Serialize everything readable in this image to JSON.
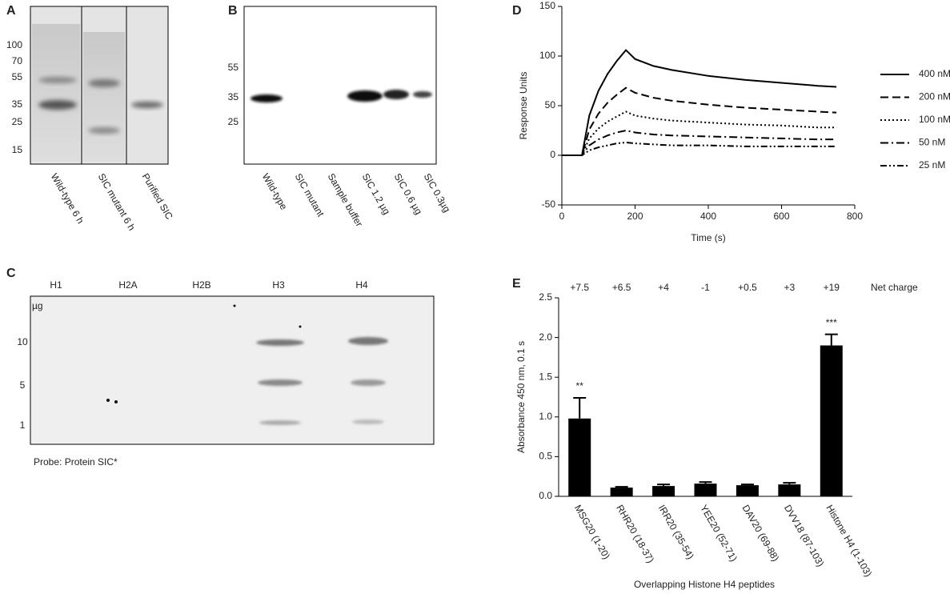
{
  "panel_labels": [
    "A",
    "B",
    "C",
    "D",
    "E"
  ],
  "gel_a": {
    "mw_labels": [
      "100",
      "70",
      "55",
      "35",
      "25",
      "15"
    ],
    "lanes": [
      "Wild-type 6 h",
      "SIC mutant 6 h",
      "Purified SIC"
    ]
  },
  "blot_b": {
    "mw_labels": [
      "55",
      "35",
      "25"
    ],
    "lanes": [
      "Wild-type",
      "SIC mutant",
      "Sample buffer",
      "SIC 1.2 µg",
      "SIC 0.6 µg",
      "SIC 0.3µg"
    ]
  },
  "blot_c": {
    "columns": [
      "H1",
      "H2A",
      "H2B",
      "H3",
      "H4"
    ],
    "unit": "µg",
    "rows": [
      "10",
      "5",
      "1"
    ],
    "caption": "Probe: Protein SIC*"
  },
  "chart_data": [
    {
      "type": "line",
      "xlabel": "Time (s)",
      "ylabel": "Response Units",
      "x": [
        0,
        55,
        75,
        100,
        125,
        150,
        175,
        200,
        250,
        300,
        400,
        500,
        600,
        700,
        750
      ],
      "series": [
        {
          "name": "400 nM",
          "color": "#000000",
          "dash": "solid",
          "values": [
            0,
            0,
            40,
            65,
            82,
            95,
            106,
            97,
            90,
            86,
            80,
            76,
            73,
            70,
            69
          ]
        },
        {
          "name": "200 nM",
          "color": "#000000",
          "dash": "dashed",
          "values": [
            0,
            0,
            26,
            42,
            53,
            61,
            68,
            63,
            58,
            55,
            51,
            48,
            46,
            44,
            43
          ]
        },
        {
          "name": "100 nM",
          "color": "#000000",
          "dash": "dotted",
          "values": [
            0,
            0,
            17,
            27,
            34,
            39,
            44,
            40,
            37,
            35,
            33,
            31,
            30,
            28,
            28
          ]
        },
        {
          "name": "50 nM",
          "color": "#000000",
          "dash": "dashdot",
          "values": [
            0,
            0,
            10,
            16,
            20,
            23,
            25,
            23,
            21,
            20,
            19,
            18,
            17,
            16,
            16
          ]
        },
        {
          "name": "25 nM",
          "color": "#000000",
          "dash": "dashdotdot",
          "values": [
            0,
            0,
            5,
            8,
            10,
            12,
            13,
            12,
            11,
            10,
            10,
            9,
            9,
            9,
            9
          ]
        }
      ],
      "xlim": [
        0,
        800
      ],
      "xticks": [
        0,
        200,
        400,
        600,
        800
      ],
      "ylim": [
        -50,
        150
      ],
      "yticks": [
        -50,
        0,
        50,
        100,
        150
      ],
      "legend": "right"
    },
    {
      "type": "bar",
      "xlabel": "Overlapping Histone H4 peptides",
      "ylabel": "Absorbance 450 nm, 0.1 s",
      "categories": [
        "MSG20 (1-20)",
        "RHR20 (18-37)",
        "IRR20 (35-54)",
        "YEE20 (52-71)",
        "DAV20 (69-88)",
        "DVV18 (87-103)",
        "Histone H4 (1-103)"
      ],
      "values": [
        0.98,
        0.11,
        0.13,
        0.16,
        0.14,
        0.15,
        1.9
      ],
      "errors": [
        0.26,
        0.01,
        0.02,
        0.02,
        0.01,
        0.02,
        0.14
      ],
      "significance": [
        "**",
        null,
        null,
        null,
        null,
        null,
        "***"
      ],
      "net_charge_label": "Net charge",
      "net_charge": [
        "+7.5",
        "+6.5",
        "+4",
        "-1",
        "+0.5",
        "+3",
        "+19"
      ],
      "color": "#000000",
      "ylim": [
        0,
        2.5
      ],
      "yticks": [
        {
          "value": 0,
          "label": "0.0"
        },
        0.5,
        {
          "value": 1,
          "label": "1.0"
        },
        1.5,
        {
          "value": 2,
          "label": "2.0"
        },
        2.5
      ]
    }
  ]
}
